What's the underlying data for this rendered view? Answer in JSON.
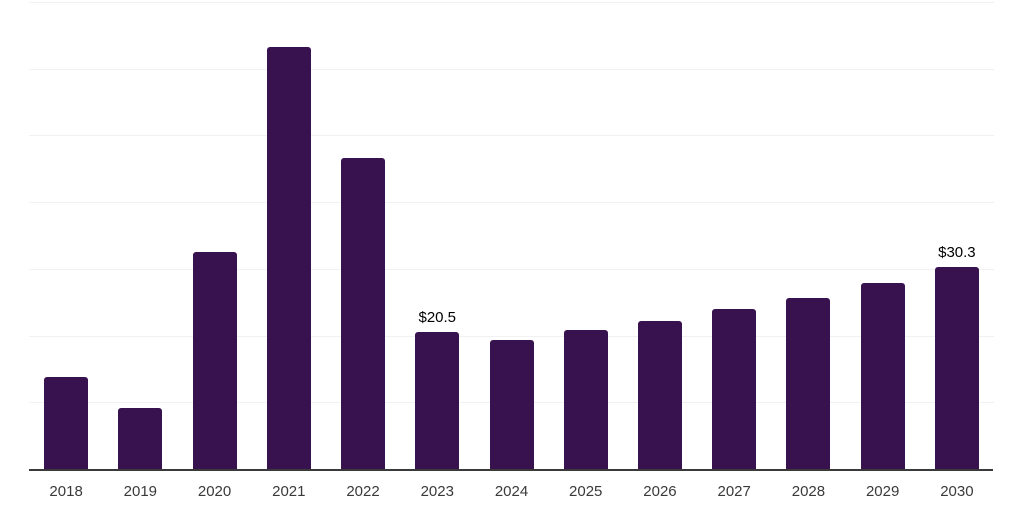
{
  "chart_data": {
    "type": "bar",
    "title": "",
    "xlabel": "",
    "ylabel": "",
    "categories": [
      "2018",
      "2019",
      "2020",
      "2021",
      "2022",
      "2023",
      "2024",
      "2025",
      "2026",
      "2027",
      "2028",
      "2029",
      "2030"
    ],
    "values": [
      13.8,
      9.2,
      32.5,
      63.2,
      46.6,
      20.5,
      19.3,
      20.8,
      22.2,
      24.0,
      25.7,
      27.9,
      30.3
    ],
    "data_labels": {
      "2023": "$20.5",
      "2030": "$30.3"
    },
    "ylim": [
      0,
      70
    ],
    "gridline_step": 10,
    "grid": true,
    "legend_position": "none",
    "colors": {
      "bar": "#38114F",
      "axis_line": "#3A3A3A",
      "gridline": "#F1F1F1",
      "tick_label": "#3A3A3A",
      "data_label": "#000000",
      "background": "#FFFFFF"
    }
  }
}
